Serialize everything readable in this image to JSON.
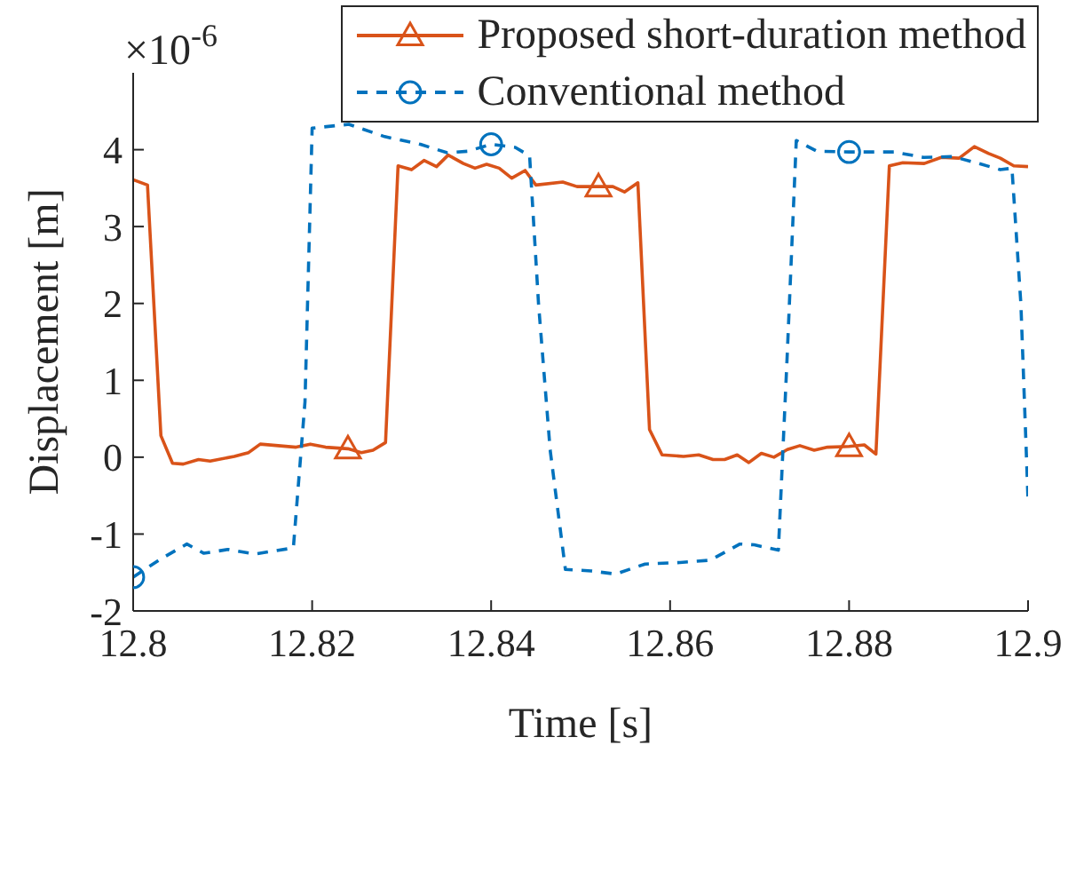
{
  "chart_data": {
    "type": "line",
    "xlabel": "Time [s]",
    "ylabel": "Displacement [m]",
    "annotations": [
      "×10$^{-6}$"
    ],
    "xlim": [
      12.8,
      12.9
    ],
    "xticks": [
      12.8,
      12.82,
      12.84,
      12.86,
      12.88,
      12.9
    ],
    "ylim": [
      -2,
      5
    ],
    "yticks": [
      -2,
      -1,
      0,
      1,
      2,
      3,
      4
    ],
    "grid": false,
    "legend": "top right",
    "series": [
      {
        "name": "Proposed short-duration method",
        "color": "#d95319",
        "line_style": "solid",
        "x": [
          12.8,
          12.8016,
          12.8031,
          12.8044,
          12.8056,
          12.8073,
          12.8086,
          12.8113,
          12.8129,
          12.8142,
          12.8182,
          12.8198,
          12.8215,
          12.824,
          12.8255,
          12.8268,
          12.8282,
          12.8296,
          12.8311,
          12.8325,
          12.8339,
          12.8352,
          12.8369,
          12.8382,
          12.8395,
          12.8409,
          12.8423,
          12.8438,
          12.845,
          12.848,
          12.8496,
          12.852,
          12.8536,
          12.8549,
          12.8564,
          12.8577,
          12.8591,
          12.8615,
          12.8632,
          12.8648,
          12.8661,
          12.8675,
          12.8688,
          12.8702,
          12.8716,
          12.8731,
          12.8745,
          12.8761,
          12.8776,
          12.88,
          12.8817,
          12.883,
          12.8845,
          12.886,
          12.8884,
          12.8903,
          12.8923,
          12.894,
          12.8956,
          12.8969,
          12.8984,
          12.9
        ],
        "values": [
          3.61,
          3.54,
          0.28,
          -0.08,
          -0.09,
          -0.03,
          -0.05,
          0.01,
          0.06,
          0.17,
          0.13,
          0.17,
          0.13,
          0.11,
          0.06,
          0.09,
          0.19,
          3.79,
          3.74,
          3.86,
          3.78,
          3.93,
          3.82,
          3.76,
          3.81,
          3.76,
          3.63,
          3.73,
          3.54,
          3.58,
          3.52,
          3.52,
          3.52,
          3.45,
          3.57,
          0.36,
          0.03,
          0.01,
          0.03,
          -0.03,
          -0.03,
          0.03,
          -0.07,
          0.05,
          0,
          0.1,
          0.15,
          0.09,
          0.13,
          0.14,
          0.16,
          0.04,
          3.79,
          3.83,
          3.82,
          3.9,
          3.89,
          4.04,
          3.95,
          3.89,
          3.79,
          3.78
        ]
      },
      {
        "name": "Conventional method",
        "color": "#0072bd",
        "line_style": "dashed",
        "x": [
          12.8,
          12.803,
          12.806,
          12.8079,
          12.8106,
          12.8136,
          12.8179,
          12.8192,
          12.82,
          12.8241,
          12.8281,
          12.8321,
          12.8351,
          12.8374,
          12.84,
          12.8427,
          12.8443,
          12.8453,
          12.8466,
          12.8483,
          12.8512,
          12.8539,
          12.8572,
          12.8611,
          12.8645,
          12.8678,
          12.8694,
          12.8721,
          12.8731,
          12.8741,
          12.8764,
          12.88,
          12.885,
          12.8883,
          12.8916,
          12.8942,
          12.8969,
          12.8982,
          12.8992,
          12.9
        ],
        "values": [
          -1.56,
          -1.33,
          -1.13,
          -1.25,
          -1.2,
          -1.26,
          -1.18,
          0.72,
          4.28,
          4.33,
          4.17,
          4.07,
          3.96,
          3.98,
          4.07,
          4.03,
          3.92,
          1.99,
          0.09,
          -1.46,
          -1.48,
          -1.52,
          -1.39,
          -1.37,
          -1.34,
          -1.13,
          -1.14,
          -1.21,
          1.36,
          4.12,
          3.98,
          3.97,
          3.97,
          3.9,
          3.91,
          3.83,
          3.74,
          3.76,
          1.99,
          -0.57
        ]
      },
      {
        "type": "scatter",
        "color": "#d95319",
        "marker": "triangle",
        "x": [
          12.824,
          12.852,
          12.88
        ],
        "values": [
          0.11,
          3.52,
          0.14
        ]
      },
      {
        "type": "scatter",
        "color": "#0072bd",
        "marker": "circle",
        "x": [
          12.8,
          12.84,
          12.88
        ],
        "values": [
          -1.56,
          4.07,
          3.97
        ]
      }
    ]
  }
}
